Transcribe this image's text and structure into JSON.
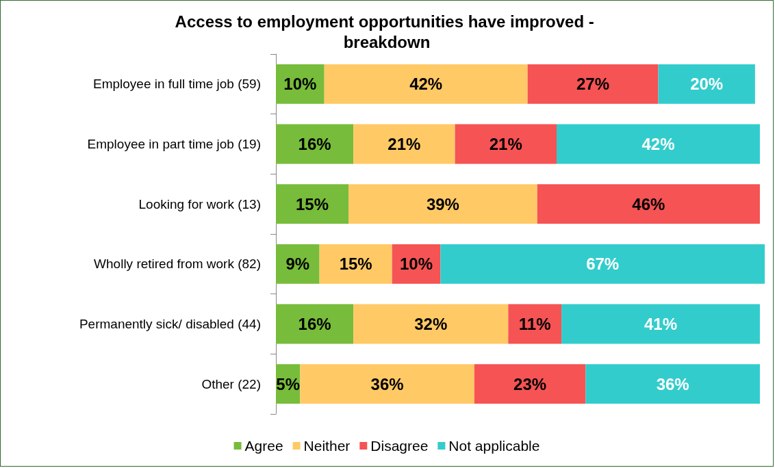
{
  "chart_data": {
    "type": "bar",
    "orientation": "horizontal",
    "stacked": true,
    "legend": "bottom",
    "title": "Access to employment opportunities have improved - breakdown",
    "categories": [
      "Employee in full time job (59)",
      "Employee in part time job (19)",
      "Looking for work (13)",
      "Wholly retired from work (82)",
      "Permanently sick/ disabled (44)",
      "Other (22)"
    ],
    "series": [
      {
        "name": "Agree",
        "color": "#77bc3a",
        "values": [
          10,
          16,
          15,
          9,
          16,
          5
        ],
        "value_labels": [
          "10%",
          "16%",
          "15%",
          "9%",
          "16%",
          "5%"
        ]
      },
      {
        "name": "Neither",
        "color": "#ffc966",
        "values": [
          42,
          21,
          39,
          15,
          32,
          36
        ],
        "value_labels": [
          "42%",
          "21%",
          "39%",
          "15%",
          "32%",
          "36%"
        ]
      },
      {
        "name": "Disagree",
        "color": "#f55354",
        "values": [
          27,
          21,
          46,
          10,
          11,
          23
        ],
        "value_labels": [
          "27%",
          "21%",
          "46%",
          "10%",
          "11%",
          "23%"
        ]
      },
      {
        "name": "Not applicable",
        "color": "#33cccc",
        "values": [
          20,
          42,
          null,
          67,
          41,
          36
        ],
        "value_labels": [
          "20%",
          "42%",
          null,
          "67%",
          "41%",
          "36%"
        ]
      }
    ]
  }
}
